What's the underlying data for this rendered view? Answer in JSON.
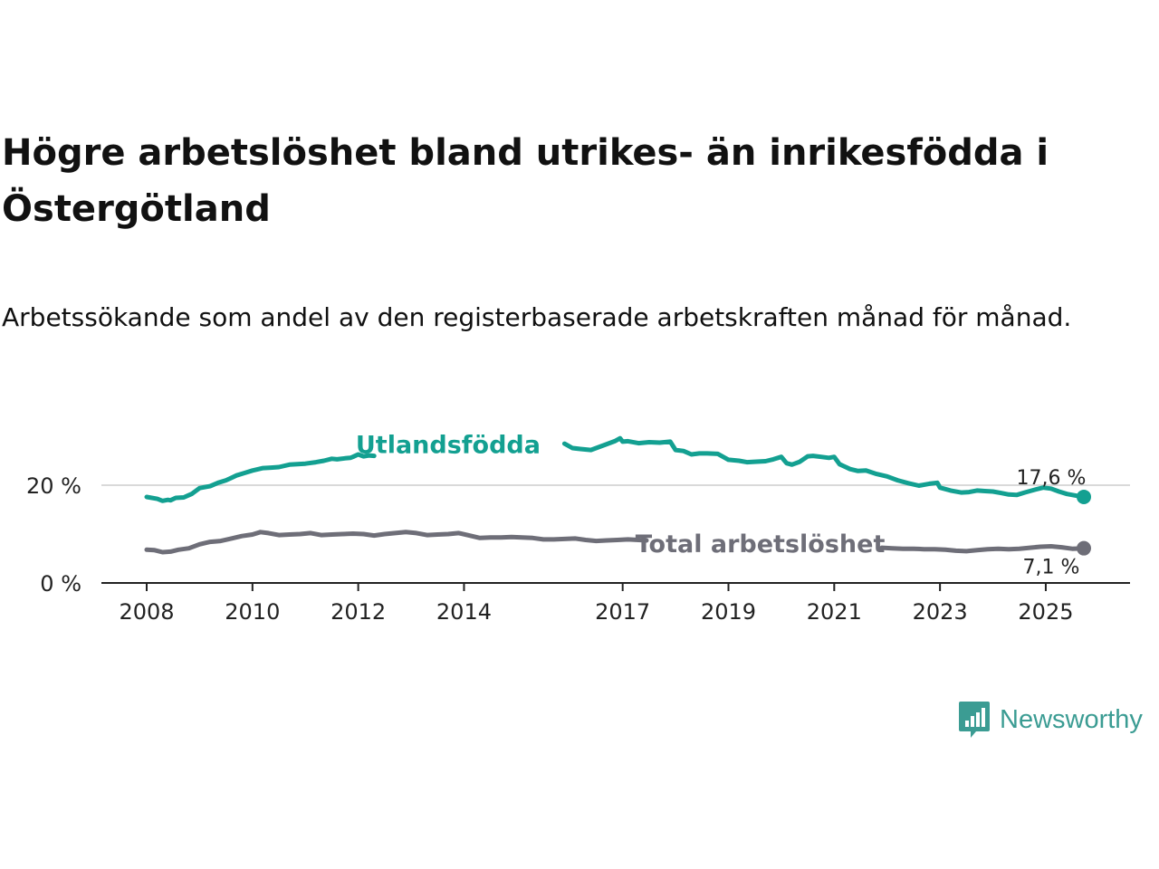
{
  "title": "Högre arbetslöshet bland utrikes- än inrikesfödda i Östergötland",
  "subtitle": "Arbetssökande som andel av den registerbaserade arbetskraften månad för månad.",
  "brand": {
    "name": "Newsworthy",
    "icon": "newsworthy-logo-icon",
    "color": "#3b9c93"
  },
  "chart_data": {
    "type": "line",
    "title": "Högre arbetslöshet bland utrikes- än inrikesfödda i Östergötland",
    "xlabel": "",
    "ylabel": "",
    "xlim": [
      2008.0,
      2025.72
    ],
    "ylim": [
      0,
      30
    ],
    "grid": "horizontal",
    "x_ticks": [
      2008,
      2010,
      2012,
      2014,
      2017,
      2019,
      2021,
      2023,
      2025
    ],
    "x_tick_labels": [
      "2008",
      "2010",
      "2012",
      "2014",
      "2017",
      "2019",
      "2021",
      "2023",
      "2025"
    ],
    "y_ticks": [
      0,
      20
    ],
    "y_tick_labels": [
      "0 %",
      "20 %"
    ],
    "series": [
      {
        "name": "Utlandsfödda",
        "color": "#13a091",
        "end_label": "17,6 %",
        "x": [
          2008.0,
          2008.2,
          2008.3,
          2008.4,
          2008.45,
          2008.55,
          2008.7,
          2008.85,
          2009.0,
          2009.2,
          2009.35,
          2009.5,
          2009.7,
          2009.85,
          2010.0,
          2010.2,
          2010.35,
          2010.5,
          2010.7,
          2010.85,
          2011.0,
          2011.2,
          2011.35,
          2011.5,
          2011.6,
          2011.75,
          2011.85,
          2011.9,
          2012.0,
          2012.1,
          2012.2,
          2012.3,
          2015.9,
          2016.05,
          2016.2,
          2016.4,
          2016.55,
          2016.7,
          2016.85,
          2016.95,
          2017.0,
          2017.1,
          2017.3,
          2017.5,
          2017.7,
          2017.9,
          2018.0,
          2018.15,
          2018.3,
          2018.45,
          2018.6,
          2018.8,
          2019.0,
          2019.2,
          2019.35,
          2019.5,
          2019.7,
          2019.85,
          2020.0,
          2020.1,
          2020.2,
          2020.35,
          2020.5,
          2020.6,
          2020.75,
          2020.9,
          2021.0,
          2021.1,
          2021.2,
          2021.3,
          2021.45,
          2021.6,
          2021.8,
          2022.0,
          2022.2,
          2022.4,
          2022.6,
          2022.8,
          2022.95,
          2023.0,
          2023.2,
          2023.4,
          2023.55,
          2023.7,
          2023.85,
          2024.0,
          2024.15,
          2024.3,
          2024.45,
          2024.6,
          2024.8,
          2024.95,
          2025.1,
          2025.25,
          2025.4,
          2025.55,
          2025.72
        ],
        "y": [
          17.6,
          17.2,
          16.8,
          17.0,
          16.9,
          17.4,
          17.5,
          18.2,
          19.4,
          19.8,
          20.5,
          21.0,
          22.0,
          22.5,
          23.0,
          23.5,
          23.6,
          23.7,
          24.2,
          24.3,
          24.4,
          24.7,
          25.0,
          25.4,
          25.3,
          25.5,
          25.6,
          25.8,
          26.3,
          25.9,
          26.1,
          26.0,
          28.5,
          27.6,
          27.4,
          27.2,
          27.8,
          28.4,
          29.0,
          29.6,
          28.9,
          29.0,
          28.6,
          28.8,
          28.7,
          28.9,
          27.2,
          27.0,
          26.3,
          26.5,
          26.5,
          26.4,
          25.2,
          25.0,
          24.7,
          24.8,
          24.9,
          25.3,
          25.8,
          24.5,
          24.2,
          24.8,
          25.9,
          26.0,
          25.8,
          25.6,
          25.8,
          24.3,
          23.8,
          23.3,
          22.9,
          23.0,
          22.3,
          21.8,
          21.0,
          20.4,
          19.9,
          20.3,
          20.5,
          19.5,
          18.9,
          18.5,
          18.6,
          18.9,
          18.8,
          18.7,
          18.4,
          18.1,
          18.0,
          18.5,
          19.1,
          19.5,
          19.3,
          18.7,
          18.2,
          17.9,
          17.6
        ]
      },
      {
        "name": "Total arbetslöshet",
        "color": "#6e6e78",
        "end_label": "7,1 %",
        "x": [
          2008.0,
          2008.15,
          2008.3,
          2008.45,
          2008.6,
          2008.8,
          2009.0,
          2009.2,
          2009.4,
          2009.6,
          2009.8,
          2010.0,
          2010.15,
          2010.3,
          2010.5,
          2010.7,
          2010.9,
          2011.1,
          2011.3,
          2011.5,
          2011.7,
          2011.9,
          2012.1,
          2012.3,
          2012.5,
          2012.7,
          2012.9,
          2013.1,
          2013.3,
          2013.5,
          2013.7,
          2013.9,
          2014.1,
          2014.3,
          2014.5,
          2014.7,
          2014.9,
          2015.1,
          2015.3,
          2015.5,
          2015.7,
          2015.9,
          2016.1,
          2016.3,
          2016.5,
          2016.7,
          2016.9,
          2017.1,
          2017.3,
          2017.45,
          2021.9,
          2022.1,
          2022.3,
          2022.5,
          2022.7,
          2022.9,
          2023.1,
          2023.3,
          2023.5,
          2023.7,
          2023.9,
          2024.1,
          2024.3,
          2024.5,
          2024.7,
          2024.9,
          2025.1,
          2025.3,
          2025.5,
          2025.72
        ],
        "y": [
          6.8,
          6.7,
          6.3,
          6.4,
          6.8,
          7.1,
          7.9,
          8.4,
          8.6,
          9.1,
          9.6,
          9.9,
          10.4,
          10.2,
          9.8,
          9.9,
          10.0,
          10.2,
          9.8,
          9.9,
          10.0,
          10.1,
          10.0,
          9.7,
          10.0,
          10.2,
          10.4,
          10.2,
          9.8,
          9.9,
          10.0,
          10.2,
          9.7,
          9.2,
          9.3,
          9.3,
          9.4,
          9.3,
          9.2,
          8.9,
          8.9,
          9.0,
          9.1,
          8.8,
          8.6,
          8.7,
          8.8,
          8.9,
          8.8,
          8.7,
          7.2,
          7.1,
          7.0,
          7.0,
          6.9,
          6.9,
          6.8,
          6.6,
          6.5,
          6.7,
          6.9,
          7.0,
          6.9,
          7.0,
          7.2,
          7.4,
          7.5,
          7.3,
          7.0,
          7.1
        ]
      }
    ],
    "annotations": [
      {
        "text": "Utlandsfödda",
        "series": "Utlandsfödda",
        "x": 2013.7,
        "y": 28.2
      },
      {
        "text": "Total arbetslöshet",
        "series": "Total arbetslöshet",
        "x": 2019.6,
        "y": 8.0
      }
    ]
  }
}
